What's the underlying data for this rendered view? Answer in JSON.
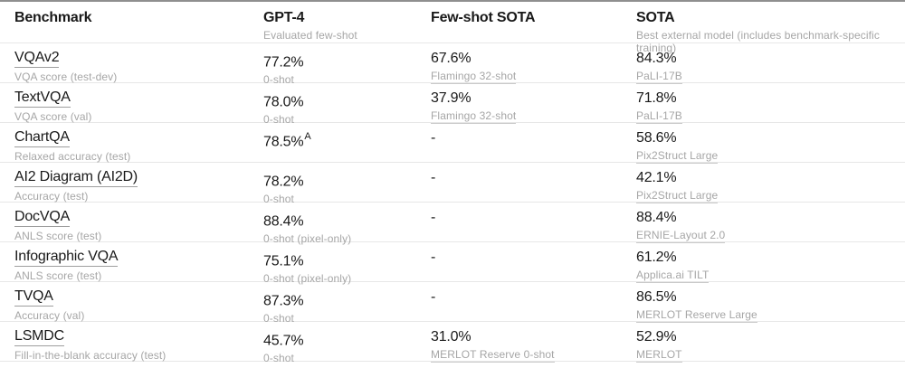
{
  "header": {
    "columns": [
      {
        "label": "Benchmark",
        "sublabel": ""
      },
      {
        "label": "GPT-4",
        "sublabel": "Evaluated few-shot"
      },
      {
        "label": "Few-shot SOTA",
        "sublabel": ""
      },
      {
        "label": "SOTA",
        "sublabel": "Best external model (includes benchmark-specific training)"
      }
    ]
  },
  "colors": {
    "text": "#191919",
    "muted": "#a6a6a6",
    "divider": "#e7e7e7",
    "top_rule": "#8f8f8f",
    "background": "#ffffff"
  },
  "rows": [
    {
      "benchmark": "VQAv2",
      "metric": "VQA score (test-dev)",
      "gpt4_value": "77.2%",
      "gpt4_sup": "",
      "gpt4_note": "0-shot",
      "fewshot_value": "67.6%",
      "fewshot_note": "Flamingo 32-shot",
      "sota_value": "84.3%",
      "sota_note": "PaLI-17B"
    },
    {
      "benchmark": "TextVQA",
      "metric": "VQA score (val)",
      "gpt4_value": "78.0%",
      "gpt4_sup": "",
      "gpt4_note": "0-shot",
      "fewshot_value": "37.9%",
      "fewshot_note": "Flamingo 32-shot",
      "sota_value": "71.8%",
      "sota_note": "PaLI-17B"
    },
    {
      "benchmark": "ChartQA",
      "metric": "Relaxed accuracy (test)",
      "gpt4_value": "78.5%",
      "gpt4_sup": "A",
      "gpt4_note": "",
      "fewshot_value": "-",
      "fewshot_note": "",
      "sota_value": "58.6%",
      "sota_note": "Pix2Struct Large"
    },
    {
      "benchmark": "AI2 Diagram (AI2D)",
      "metric": "Accuracy (test)",
      "gpt4_value": "78.2%",
      "gpt4_sup": "",
      "gpt4_note": "0-shot",
      "fewshot_value": "-",
      "fewshot_note": "",
      "sota_value": "42.1%",
      "sota_note": "Pix2Struct Large"
    },
    {
      "benchmark": "DocVQA",
      "metric": "ANLS score (test)",
      "gpt4_value": "88.4%",
      "gpt4_sup": "",
      "gpt4_note": "0-shot (pixel-only)",
      "fewshot_value": "-",
      "fewshot_note": "",
      "sota_value": "88.4%",
      "sota_note": "ERNIE-Layout 2.0"
    },
    {
      "benchmark": "Infographic VQA",
      "metric": "ANLS score (test)",
      "gpt4_value": "75.1%",
      "gpt4_sup": "",
      "gpt4_note": "0-shot (pixel-only)",
      "fewshot_value": "-",
      "fewshot_note": "",
      "sota_value": "61.2%",
      "sota_note": "Applica.ai TILT"
    },
    {
      "benchmark": "TVQA",
      "metric": "Accuracy (val)",
      "gpt4_value": "87.3%",
      "gpt4_sup": "",
      "gpt4_note": "0-shot",
      "fewshot_value": "-",
      "fewshot_note": "",
      "sota_value": "86.5%",
      "sota_note": "MERLOT Reserve Large"
    },
    {
      "benchmark": "LSMDC",
      "metric": "Fill-in-the-blank accuracy (test)",
      "gpt4_value": "45.7%",
      "gpt4_sup": "",
      "gpt4_note": "0-shot",
      "fewshot_value": "31.0%",
      "fewshot_note": "MERLOT Reserve 0-shot",
      "sota_value": "52.9%",
      "sota_note": "MERLOT"
    }
  ]
}
